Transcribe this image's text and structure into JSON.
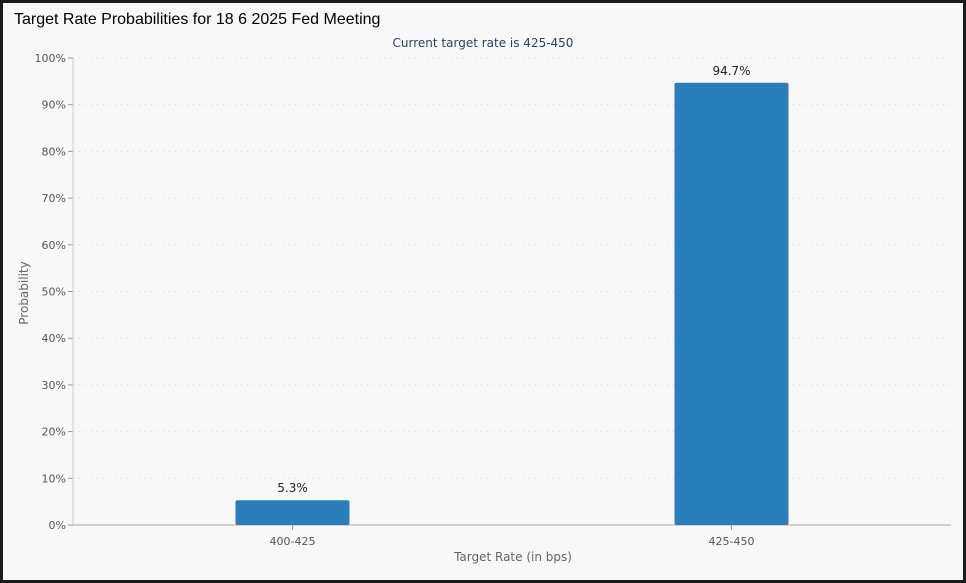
{
  "window": {
    "title": "Target Rate Probabilities for 18 6 2025 Fed Meeting"
  },
  "chart_data": {
    "type": "bar",
    "subtitle": "Current target rate is 425-450",
    "categories": [
      "400-425",
      "425-450"
    ],
    "values": [
      5.3,
      94.7
    ],
    "data_labels": [
      "5.3%",
      "94.7%"
    ],
    "xlabel": "Target Rate (in bps)",
    "ylabel": "Probability",
    "ylim": [
      0,
      100
    ],
    "yticks": [
      0,
      10,
      20,
      30,
      40,
      50,
      60,
      70,
      80,
      90,
      100
    ],
    "ytick_labels": [
      "0%",
      "10%",
      "20%",
      "30%",
      "40%",
      "50%",
      "60%",
      "70%",
      "80%",
      "90%",
      "100%"
    ],
    "grid": true,
    "bar_color": "#2a7fba"
  }
}
